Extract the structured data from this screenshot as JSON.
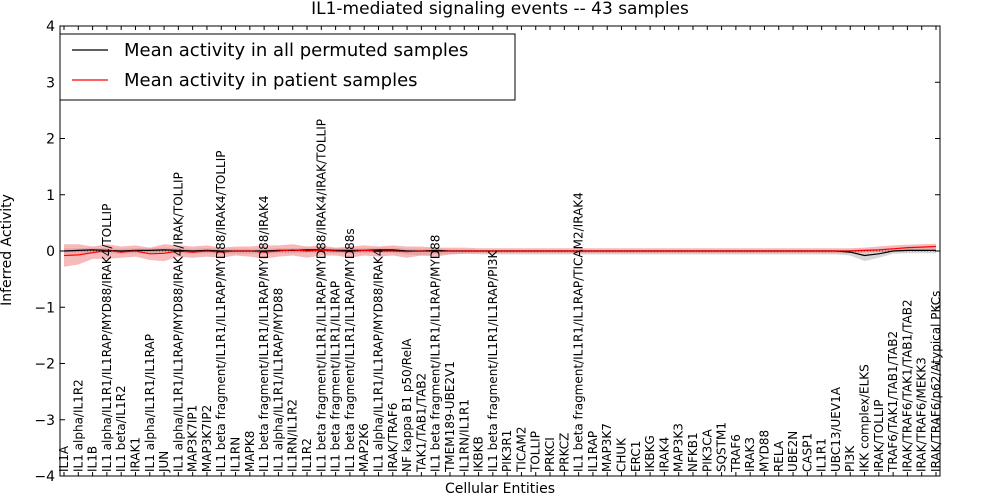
{
  "chart_data": {
    "type": "line",
    "title": "IL1-mediated signaling events -- 43 samples",
    "xlabel": "Cellular Entities",
    "ylabel": "Inferred Activity",
    "ylim": [
      -4,
      4
    ],
    "yticks": [
      -4,
      -3,
      -2,
      -1,
      0,
      1,
      2,
      3,
      4
    ],
    "grid": false,
    "legend_position": "upper-left",
    "categories": [
      "IL1A",
      "IL1 alpha/IL1R2",
      "IL1B",
      "IL1 alpha/IL1R1/IL1RAP/MYD88/IRAK4/TOLLIP",
      "IL1 beta/IL1R2",
      "IRAK1",
      "IL1 alpha/IL1R1/IL1RAP",
      "JUN",
      "IL1 alpha/IL1R1/IL1RAP/MYD88/IRAK4/IRAK/TOLLIP",
      "MAP3K7IP1",
      "MAP3K7IP2",
      "IL1 beta fragment/IL1R1/IL1RAP/MYD88/IRAK4/TOLLIP",
      "IL1RN",
      "MAPK8",
      "IL1 beta fragment/IL1R1/IL1RAP/MYD88/IRAK4",
      "IL1 alpha/IL1R1/IL1RAP/MYD88",
      "IL1RN/IL1R2",
      "IL1R2",
      "IL1 beta fragment/IL1R1/IL1RAP/MYD88/IRAK4/IRAK/TOLLIP",
      "IL1 beta fragment/IL1R1/IL1RAP",
      "IL1 beta fragment/IL1R1/IL1RAP/MYD88s",
      "MAP2K6",
      "IL1 alpha/IL1R1/IL1RAP/MYD88/IRAK4",
      "IRAK/TRAF6",
      "NF kappa B1 p50/RelA",
      "TAK1/TAB1/TAB2",
      "IL1 beta fragment/IL1R1/IL1RAP/MYD88",
      "TMEM189-UBE2V1",
      "IL1RN/IL1R1",
      "IKBKB",
      "IL1 beta fragment/IL1R1/IL1RAP/PI3K",
      "PIK3R1",
      "TICAM2",
      "TOLLIP",
      "PRKCI",
      "PRKCZ",
      "IL1 beta fragment/IL1R1/IL1RAP/TICAM2/IRAK4",
      "IL1RAP",
      "MAP3K7",
      "CHUK",
      "ERC1",
      "IKBKG",
      "IRAK4",
      "MAP3K3",
      "NFKB1",
      "PIK3CA",
      "SQSTM1",
      "TRAF6",
      "IRAK3",
      "MYD88",
      "RELA",
      "UBE2N",
      "CASP1",
      "IL1R1",
      "UBC13/UEV1A",
      "PI3K",
      "IKK complex/ELKS",
      "IRAK/TOLLIP",
      "TRAF6/TAK1/TAB1/TAB2",
      "IRAK/TRAF6/TAK1/TAB1/TAB2",
      "IRAK/TRAF6/MEKK3",
      "IRAK/TRAF6/p62/Atypical PKCs"
    ],
    "series": [
      {
        "name": "Mean activity in all permuted samples",
        "color": "#000000",
        "values": [
          0.0,
          0.01,
          0.02,
          0.01,
          0.0,
          0.01,
          0.01,
          0.02,
          0.01,
          0.0,
          0.01,
          0.0,
          0.0,
          0.0,
          0.0,
          0.01,
          0.01,
          0.02,
          0.02,
          0.01,
          0.01,
          0.01,
          0.02,
          0.02,
          0.0,
          0.0,
          0.01,
          0.0,
          0.0,
          0.0,
          0.0,
          0.0,
          0.0,
          0.0,
          0.0,
          0.0,
          0.0,
          0.0,
          0.0,
          0.0,
          0.0,
          0.0,
          0.0,
          0.0,
          0.0,
          0.0,
          0.0,
          0.0,
          0.0,
          0.0,
          0.0,
          0.0,
          0.0,
          0.0,
          0.0,
          -0.02,
          -0.08,
          -0.05,
          0.0,
          0.01,
          0.01,
          0.01
        ],
        "band_upper": [
          0.05,
          0.05,
          0.06,
          0.05,
          0.04,
          0.05,
          0.05,
          0.06,
          0.05,
          0.04,
          0.05,
          0.04,
          0.04,
          0.04,
          0.04,
          0.05,
          0.05,
          0.06,
          0.06,
          0.05,
          0.05,
          0.05,
          0.06,
          0.06,
          0.04,
          0.04,
          0.05,
          0.03,
          0.03,
          0.02,
          0.02,
          0.02,
          0.02,
          0.02,
          0.02,
          0.02,
          0.02,
          0.02,
          0.02,
          0.02,
          0.02,
          0.02,
          0.02,
          0.02,
          0.02,
          0.02,
          0.02,
          0.02,
          0.02,
          0.02,
          0.02,
          0.02,
          0.02,
          0.02,
          0.02,
          0.02,
          0.03,
          0.03,
          0.04,
          0.05,
          0.05,
          0.05
        ],
        "band_lower": [
          -0.05,
          -0.04,
          -0.03,
          -0.04,
          -0.05,
          -0.04,
          -0.04,
          -0.03,
          -0.04,
          -0.05,
          -0.04,
          -0.05,
          -0.05,
          -0.05,
          -0.05,
          -0.04,
          -0.04,
          -0.03,
          -0.03,
          -0.04,
          -0.04,
          -0.04,
          -0.03,
          -0.03,
          -0.06,
          -0.08,
          -0.05,
          -0.06,
          -0.05,
          -0.06,
          -0.06,
          -0.06,
          -0.06,
          -0.06,
          -0.06,
          -0.06,
          -0.06,
          -0.06,
          -0.06,
          -0.06,
          -0.06,
          -0.06,
          -0.06,
          -0.06,
          -0.06,
          -0.06,
          -0.06,
          -0.06,
          -0.06,
          -0.06,
          -0.06,
          -0.06,
          -0.06,
          -0.06,
          -0.06,
          -0.08,
          -0.18,
          -0.12,
          -0.05,
          -0.04,
          -0.04,
          -0.04
        ]
      },
      {
        "name": "Mean activity in patient samples",
        "color": "#ff0000",
        "values": [
          -0.08,
          -0.07,
          -0.03,
          0.01,
          -0.02,
          0.0,
          -0.05,
          -0.04,
          0.0,
          -0.02,
          0.0,
          -0.02,
          0.0,
          0.0,
          -0.02,
          0.0,
          0.02,
          0.0,
          0.01,
          0.0,
          -0.01,
          0.01,
          0.0,
          0.0,
          -0.01,
          0.0,
          -0.01,
          0.0,
          0.0,
          0.0,
          0.0,
          0.0,
          0.0,
          0.0,
          0.0,
          0.0,
          0.0,
          0.0,
          0.0,
          0.0,
          0.0,
          0.0,
          0.0,
          0.0,
          0.0,
          0.0,
          0.0,
          0.0,
          0.0,
          0.0,
          0.0,
          0.0,
          0.0,
          0.0,
          0.0,
          0.0,
          0.01,
          0.02,
          0.04,
          0.06,
          0.07,
          0.08
        ],
        "band_upper": [
          0.12,
          0.12,
          0.08,
          0.12,
          0.08,
          0.1,
          0.06,
          0.12,
          0.1,
          0.08,
          0.1,
          0.06,
          0.08,
          0.08,
          0.1,
          0.1,
          0.12,
          0.08,
          0.1,
          0.06,
          0.08,
          0.1,
          0.08,
          0.1,
          0.08,
          0.08,
          0.06,
          0.06,
          0.06,
          0.05,
          0.05,
          0.05,
          0.05,
          0.05,
          0.05,
          0.05,
          0.05,
          0.05,
          0.05,
          0.05,
          0.05,
          0.05,
          0.05,
          0.05,
          0.05,
          0.05,
          0.05,
          0.05,
          0.05,
          0.05,
          0.05,
          0.05,
          0.05,
          0.05,
          0.05,
          0.05,
          0.06,
          0.08,
          0.1,
          0.11,
          0.12,
          0.13
        ],
        "band_lower": [
          -0.28,
          -0.24,
          -0.14,
          -0.14,
          -0.12,
          -0.1,
          -0.16,
          -0.18,
          -0.1,
          -0.12,
          -0.1,
          -0.12,
          -0.08,
          -0.1,
          -0.14,
          -0.1,
          -0.08,
          -0.12,
          -0.08,
          -0.08,
          -0.12,
          -0.08,
          -0.1,
          -0.08,
          -0.12,
          -0.08,
          -0.1,
          -0.06,
          -0.05,
          -0.04,
          -0.04,
          -0.04,
          -0.04,
          -0.04,
          -0.04,
          -0.04,
          -0.04,
          -0.04,
          -0.04,
          -0.04,
          -0.04,
          -0.04,
          -0.04,
          -0.04,
          -0.04,
          -0.04,
          -0.04,
          -0.04,
          -0.04,
          -0.04,
          -0.04,
          -0.04,
          -0.04,
          -0.04,
          -0.04,
          -0.04,
          -0.03,
          -0.02,
          0.0,
          0.01,
          0.02,
          0.03
        ]
      }
    ]
  }
}
